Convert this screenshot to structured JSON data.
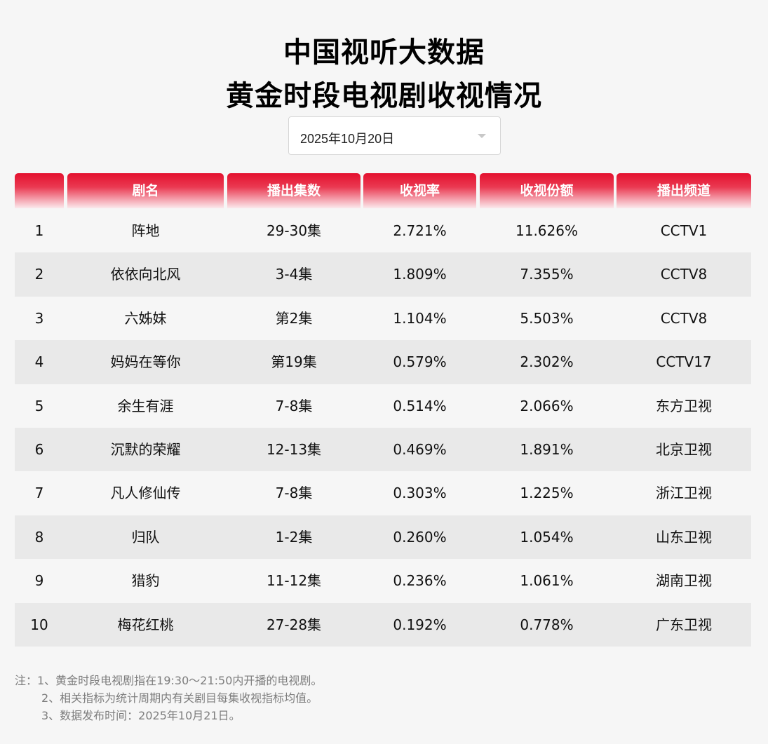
{
  "title_line1": "中国视听大数据",
  "title_line2": "黄金时段电视剧收视情况",
  "date_select": {
    "value": "2025年10月20日",
    "icon": "caret-down-icon"
  },
  "table": {
    "headers": [
      "",
      "剧名",
      "播出集数",
      "收视率",
      "收视份额",
      "播出频道"
    ],
    "rows": [
      [
        "1",
        "阵地",
        "29-30集",
        "2.721%",
        "11.626%",
        "CCTV1"
      ],
      [
        "2",
        "依依向北风",
        "3-4集",
        "1.809%",
        "7.355%",
        "CCTV8"
      ],
      [
        "3",
        "六姊妹",
        "第2集",
        "1.104%",
        "5.503%",
        "CCTV8"
      ],
      [
        "4",
        "妈妈在等你",
        "第19集",
        "0.579%",
        "2.302%",
        "CCTV17"
      ],
      [
        "5",
        "余生有涯",
        "7-8集",
        "0.514%",
        "2.066%",
        "东方卫视"
      ],
      [
        "6",
        "沉默的荣耀",
        "12-13集",
        "0.469%",
        "1.891%",
        "北京卫视"
      ],
      [
        "7",
        "凡人修仙传",
        "7-8集",
        "0.303%",
        "1.225%",
        "浙江卫视"
      ],
      [
        "8",
        "归队",
        "1-2集",
        "0.260%",
        "1.054%",
        "山东卫视"
      ],
      [
        "9",
        "猎豹",
        "11-12集",
        "0.236%",
        "1.061%",
        "湖南卫视"
      ],
      [
        "10",
        "梅花红桃",
        "27-28集",
        "0.192%",
        "0.778%",
        "广东卫视"
      ]
    ]
  },
  "notes": [
    "注：1、黄金时段电视剧指在19:30～21:50内开播的电视剧。",
    "2、相关指标为统计周期内有关剧目每集收视指标均值。",
    "3、数据发布时间：2025年10月21日。"
  ],
  "colors": {
    "header_red": "#e4102e",
    "alt_row": "#e9e9e9",
    "background": "#f6f6f6",
    "note_gray": "#7d7d7d"
  }
}
